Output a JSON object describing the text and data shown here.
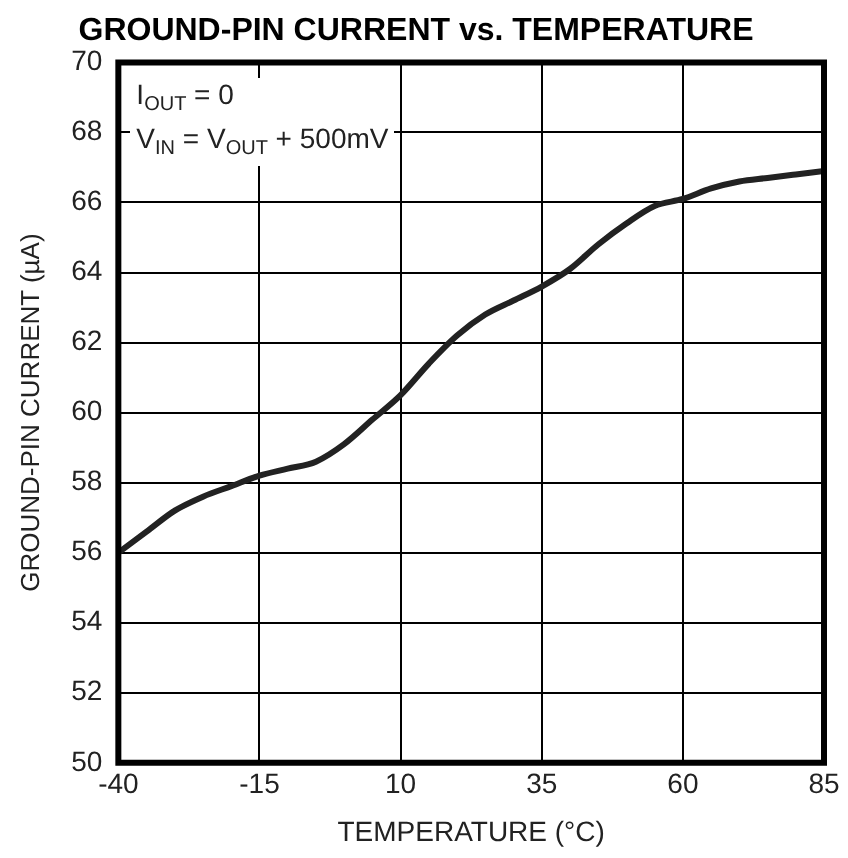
{
  "chart_data": {
    "type": "line",
    "title": "GROUND-PIN CURRENT vs. TEMPERATURE",
    "xlabel": "TEMPERATURE (°C)",
    "ylabel": "GROUND-PIN CURRENT (µA)",
    "annotations": [
      "I$_{OUT}$ = 0",
      "V$_{IN}$ = V$_{OUT}$ + 500mV"
    ],
    "x": [
      -40,
      -35,
      -30,
      -25,
      -20,
      -15,
      -10,
      -5,
      0,
      5,
      10,
      15,
      20,
      25,
      30,
      35,
      40,
      45,
      50,
      55,
      60,
      65,
      70,
      75,
      80,
      85
    ],
    "series": [
      {
        "color": "#222222",
        "values": [
          56.0,
          56.6,
          57.2,
          57.6,
          57.9,
          58.2,
          58.4,
          58.6,
          59.1,
          59.8,
          60.5,
          61.4,
          62.2,
          62.8,
          63.2,
          63.6,
          64.1,
          64.8,
          65.4,
          65.9,
          66.1,
          66.4,
          66.6,
          66.7,
          66.8,
          66.9
        ]
      }
    ],
    "xlim": [
      -40,
      85
    ],
    "xticks": [
      -40,
      -15,
      10,
      35,
      60,
      85
    ],
    "ylim": [
      50,
      70
    ],
    "yticks": [
      50,
      52,
      54,
      56,
      58,
      60,
      62,
      64,
      66,
      68,
      70
    ],
    "grid": true,
    "legend": false,
    "marker": "none",
    "line_style": "solid"
  }
}
